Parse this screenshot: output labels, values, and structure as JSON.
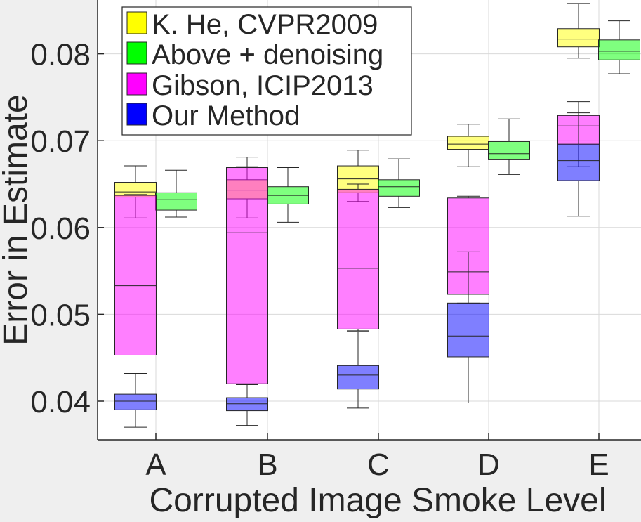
{
  "chart_data": {
    "type": "box",
    "title": "",
    "xlabel": "Corrupted Image Smoke Level",
    "ylabel": "Error in Estimate",
    "categories": [
      "A",
      "B",
      "C",
      "D",
      "E"
    ],
    "ylim": [
      0.035,
      0.086
    ],
    "yticks": [
      0.04,
      0.05,
      0.06,
      0.07,
      0.08
    ],
    "ytick_labels": [
      "0.04",
      "0.05",
      "0.06",
      "0.07",
      "0.08"
    ],
    "grid": true,
    "legend_position": "top-left",
    "series": [
      {
        "name": "K. He, CVPR2009",
        "color": "#ffff00",
        "boxes": [
          {
            "whisker_low": 0.0611,
            "q1": 0.0635,
            "median": 0.0641,
            "q3": 0.0652,
            "whisker_high": 0.0671
          },
          {
            "whisker_low": 0.0611,
            "q1": 0.0633,
            "median": 0.0643,
            "q3": 0.0655,
            "whisker_high": 0.0681
          },
          {
            "whisker_low": 0.063,
            "q1": 0.064,
            "median": 0.0656,
            "q3": 0.0671,
            "whisker_high": 0.0689
          },
          {
            "whisker_low": 0.067,
            "q1": 0.069,
            "median": 0.0696,
            "q3": 0.0705,
            "whisker_high": 0.0719
          },
          {
            "whisker_low": 0.0795,
            "q1": 0.0808,
            "median": 0.0817,
            "q3": 0.0829,
            "whisker_high": 0.0858
          }
        ]
      },
      {
        "name": "Above + denoising",
        "color": "#00ff00",
        "boxes": [
          {
            "whisker_low": 0.0612,
            "q1": 0.062,
            "median": 0.0632,
            "q3": 0.064,
            "whisker_high": 0.0666
          },
          {
            "whisker_low": 0.0606,
            "q1": 0.0627,
            "median": 0.0637,
            "q3": 0.0647,
            "whisker_high": 0.0669
          },
          {
            "whisker_low": 0.0623,
            "q1": 0.0636,
            "median": 0.0647,
            "q3": 0.0655,
            "whisker_high": 0.0679
          },
          {
            "whisker_low": 0.0661,
            "q1": 0.0678,
            "median": 0.0685,
            "q3": 0.0699,
            "whisker_high": 0.0725
          },
          {
            "whisker_low": 0.0777,
            "q1": 0.0793,
            "median": 0.0803,
            "q3": 0.0816,
            "whisker_high": 0.0838
          }
        ]
      },
      {
        "name": "Gibson, ICIP2013",
        "color": "#ff00ff",
        "boxes": [
          {
            "whisker_low": 0.0453,
            "q1": 0.0453,
            "median": 0.0533,
            "q3": 0.0637,
            "whisker_high": 0.0638
          },
          {
            "whisker_low": 0.0419,
            "q1": 0.042,
            "median": 0.0594,
            "q3": 0.0669,
            "whisker_high": 0.067
          },
          {
            "whisker_low": 0.0481,
            "q1": 0.0483,
            "median": 0.0553,
            "q3": 0.0644,
            "whisker_high": 0.065
          },
          {
            "whisker_low": 0.0513,
            "q1": 0.0523,
            "median": 0.0549,
            "q3": 0.0634,
            "whisker_high": 0.0636
          },
          {
            "whisker_low": 0.067,
            "q1": 0.0695,
            "median": 0.0717,
            "q3": 0.0729,
            "whisker_high": 0.0745
          }
        ]
      },
      {
        "name": "Our Method",
        "color": "#0000ff",
        "boxes": [
          {
            "whisker_low": 0.037,
            "q1": 0.039,
            "median": 0.04,
            "q3": 0.0408,
            "whisker_high": 0.0432
          },
          {
            "whisker_low": 0.0372,
            "q1": 0.0389,
            "median": 0.0397,
            "q3": 0.0404,
            "whisker_high": 0.0419
          },
          {
            "whisker_low": 0.0392,
            "q1": 0.0414,
            "median": 0.043,
            "q3": 0.0441,
            "whisker_high": 0.048
          },
          {
            "whisker_low": 0.0398,
            "q1": 0.0451,
            "median": 0.0475,
            "q3": 0.0513,
            "whisker_high": 0.0572
          },
          {
            "whisker_low": 0.0613,
            "q1": 0.0654,
            "median": 0.0677,
            "q3": 0.0696,
            "whisker_high": 0.0732
          }
        ]
      }
    ]
  }
}
